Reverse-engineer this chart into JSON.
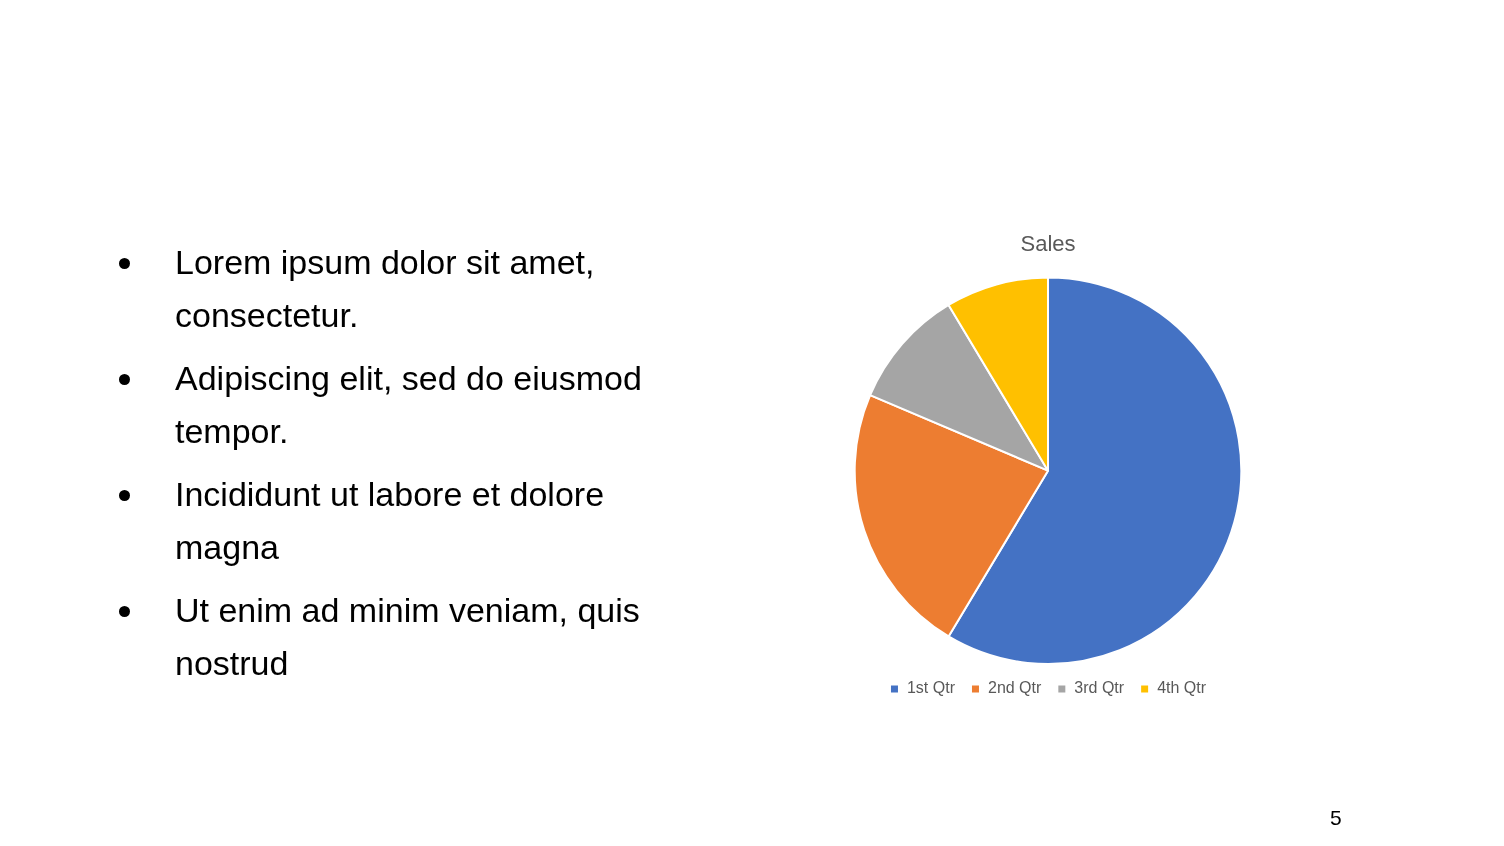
{
  "chart_data": {
    "type": "pie",
    "title": "Sales",
    "categories": [
      "1st Qtr",
      "2nd Qtr",
      "3rd Qtr",
      "4th Qtr"
    ],
    "values": [
      58.6,
      22.8,
      10.0,
      8.6
    ],
    "colors": [
      "#4472c4",
      "#ed7d31",
      "#a5a5a5",
      "#ffc000"
    ],
    "legend": "bottom",
    "annotations": [
      "Lorem ipsum dolor sit amet, consectetur.",
      "Adipiscing elit, sed do eiusmod tempor.",
      "Incididunt ut labore et dolore magna",
      "Ut enim ad minim veniam, quis nostrud",
      "5"
    ]
  }
}
